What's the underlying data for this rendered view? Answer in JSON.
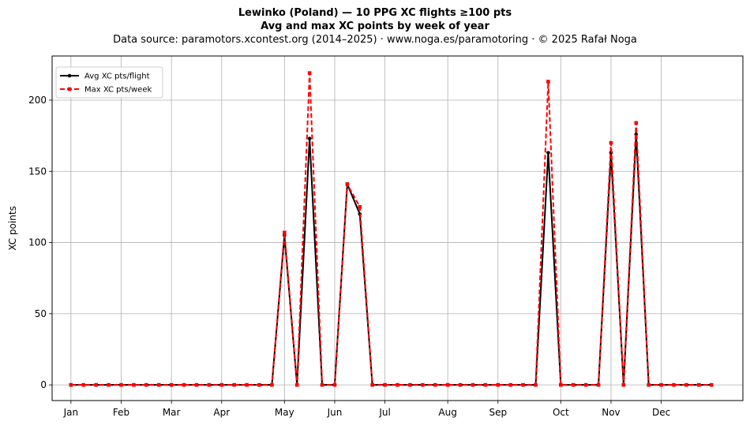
{
  "header": {
    "title": "Lewinko (Poland)  —  10 PPG XC flights ≥100 pts",
    "subtitle": "Avg and max XC points by week of year",
    "source": "Data source: paramotors.xcontest.org (2014–2025)  ·  www.noga.es/paramotoring  ·  © 2025 Rafał Noga"
  },
  "chart_data": {
    "type": "line",
    "title": "Lewinko (Poland)  —  10 PPG XC flights ≥100 pts",
    "subtitle": "Avg and max XC points by week of year",
    "xlabel": "",
    "ylabel": "XC points",
    "x": [
      1,
      2,
      3,
      4,
      5,
      6,
      7,
      8,
      9,
      10,
      11,
      12,
      13,
      14,
      15,
      16,
      17,
      18,
      19,
      20,
      21,
      22,
      23,
      24,
      25,
      26,
      27,
      28,
      29,
      30,
      31,
      32,
      33,
      34,
      35,
      36,
      37,
      38,
      39,
      40,
      41,
      42,
      43,
      44,
      45,
      46,
      47,
      48,
      49,
      50,
      51,
      52
    ],
    "xlim": [
      -0.5,
      54.5
    ],
    "ylim": [
      -11,
      231
    ],
    "month_ticks": [
      {
        "label": "Jan",
        "week": 1
      },
      {
        "label": "Feb",
        "week": 5
      },
      {
        "label": "Mar",
        "week": 9
      },
      {
        "label": "Apr",
        "week": 13
      },
      {
        "label": "May",
        "week": 18
      },
      {
        "label": "Jun",
        "week": 22
      },
      {
        "label": "Jul",
        "week": 26
      },
      {
        "label": "Aug",
        "week": 31
      },
      {
        "label": "Sep",
        "week": 35
      },
      {
        "label": "Oct",
        "week": 40
      },
      {
        "label": "Nov",
        "week": 44
      },
      {
        "label": "Dec",
        "week": 48
      }
    ],
    "y_ticks": [
      0,
      50,
      100,
      150,
      200
    ],
    "grid": true,
    "legend_position": "top-left",
    "series": [
      {
        "name": "Avg XC pts/flight",
        "color": "#000000",
        "style": "solid",
        "marker": "circle",
        "values": [
          0,
          0,
          0,
          0,
          0,
          0,
          0,
          0,
          0,
          0,
          0,
          0,
          0,
          0,
          0,
          0,
          0,
          105,
          0,
          173,
          0,
          0,
          141,
          120,
          0,
          0,
          0,
          0,
          0,
          0,
          0,
          0,
          0,
          0,
          0,
          0,
          0,
          0,
          163,
          0,
          0,
          0,
          0,
          163,
          0,
          176,
          0,
          0,
          0,
          0,
          0,
          0
        ]
      },
      {
        "name": "Max XC pts/week",
        "color": "#ff0000",
        "style": "dashed",
        "marker": "square",
        "values": [
          0,
          0,
          0,
          0,
          0,
          0,
          0,
          0,
          0,
          0,
          0,
          0,
          0,
          0,
          0,
          0,
          0,
          107,
          0,
          219,
          0,
          0,
          141,
          125,
          0,
          0,
          0,
          0,
          0,
          0,
          0,
          0,
          0,
          0,
          0,
          0,
          0,
          0,
          213,
          0,
          0,
          0,
          0,
          170,
          0,
          184,
          0,
          0,
          0,
          0,
          0,
          0
        ]
      }
    ]
  }
}
